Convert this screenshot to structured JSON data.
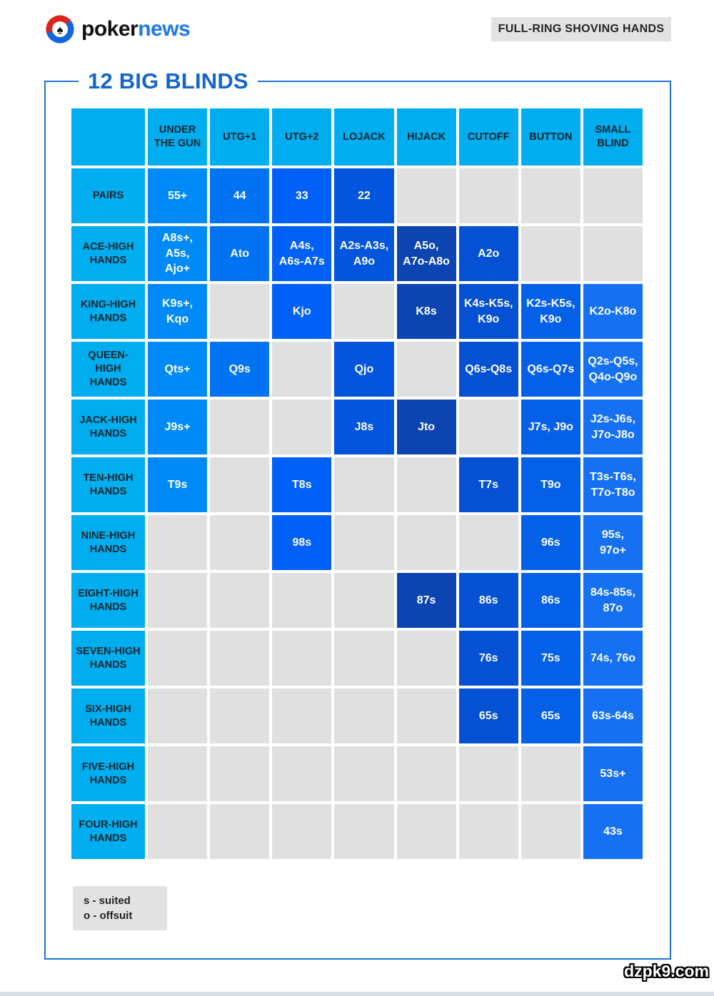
{
  "brand": {
    "poker": "poker",
    "news": "news"
  },
  "badge_label": "FULL-RING SHOVING HANDS",
  "title": "12 BIG BLINDS",
  "legend": {
    "line1": "s - suited",
    "line2": "o - offsuit"
  },
  "watermark": "dzpk9.com",
  "colors": {
    "header_cell": "#00aeef",
    "empty_cell": "#e0e0e0",
    "frame_border": "#1a75d2",
    "title_text": "#1566c9",
    "column_fill": [
      "#008af7",
      "#0072f2",
      "#0060f7",
      "#0355dd",
      "#0c45b2",
      "#0551d4",
      "#0560e8",
      "#1570f2"
    ]
  },
  "chart_data": {
    "type": "table",
    "title": "12 BIG BLINDS",
    "subtitle": "FULL-RING SHOVING HANDS",
    "columns": [
      "UNDER THE GUN",
      "UTG+1",
      "UTG+2",
      "LOJACK",
      "HIJACK",
      "CUTOFF",
      "BUTTON",
      "SMALL BLIND"
    ],
    "row_labels": [
      "PAIRS",
      "ACE-HIGH HANDS",
      "KING-HIGH HANDS",
      "QUEEN-HIGH HANDS",
      "JACK-HIGH HANDS",
      "TEN-HIGH HANDS",
      "NINE-HIGH HANDS",
      "EIGHT-HIGH HANDS",
      "SEVEN-HIGH HANDS",
      "SIX-HIGH HANDS",
      "FIVE-HIGH HANDS",
      "FOUR-HIGH HANDS"
    ],
    "rows": [
      [
        "55+",
        "44",
        "33",
        "22",
        "",
        "",
        "",
        ""
      ],
      [
        "A8s+, A5s, Ajo+",
        "Ato",
        "A4s, A6s-A7s",
        "A2s-A3s, A9o",
        "A5o, A7o-A8o",
        "A2o",
        "",
        ""
      ],
      [
        "K9s+, Kqo",
        "",
        "Kjo",
        "",
        "K8s",
        "K4s-K5s, K9o",
        "K2s-K5s, K9o",
        "K2o-K8o"
      ],
      [
        "Qts+",
        "Q9s",
        "",
        "Qjo",
        "",
        "Q6s-Q8s",
        "Q6s-Q7s",
        "Q2s-Q5s, Q4o-Q9o"
      ],
      [
        "J9s+",
        "",
        "",
        "J8s",
        "Jto",
        "",
        "J7s, J9o",
        "J2s-J6s, J7o-J8o"
      ],
      [
        "T9s",
        "",
        "T8s",
        "",
        "",
        "T7s",
        "T9o",
        "T3s-T6s, T7o-T8o"
      ],
      [
        "",
        "",
        "98s",
        "",
        "",
        "",
        "96s",
        "95s, 97o+"
      ],
      [
        "",
        "",
        "",
        "",
        "87s",
        "86s",
        "86s",
        "84s-85s, 87o"
      ],
      [
        "",
        "",
        "",
        "",
        "",
        "76s",
        "75s",
        "74s, 76o"
      ],
      [
        "",
        "",
        "",
        "",
        "",
        "65s",
        "65s",
        "63s-64s"
      ],
      [
        "",
        "",
        "",
        "",
        "",
        "",
        "",
        "53s+"
      ],
      [
        "",
        "",
        "",
        "",
        "",
        "",
        "",
        "43s"
      ]
    ],
    "legend": [
      "s - suited",
      "o - offsuit"
    ]
  }
}
